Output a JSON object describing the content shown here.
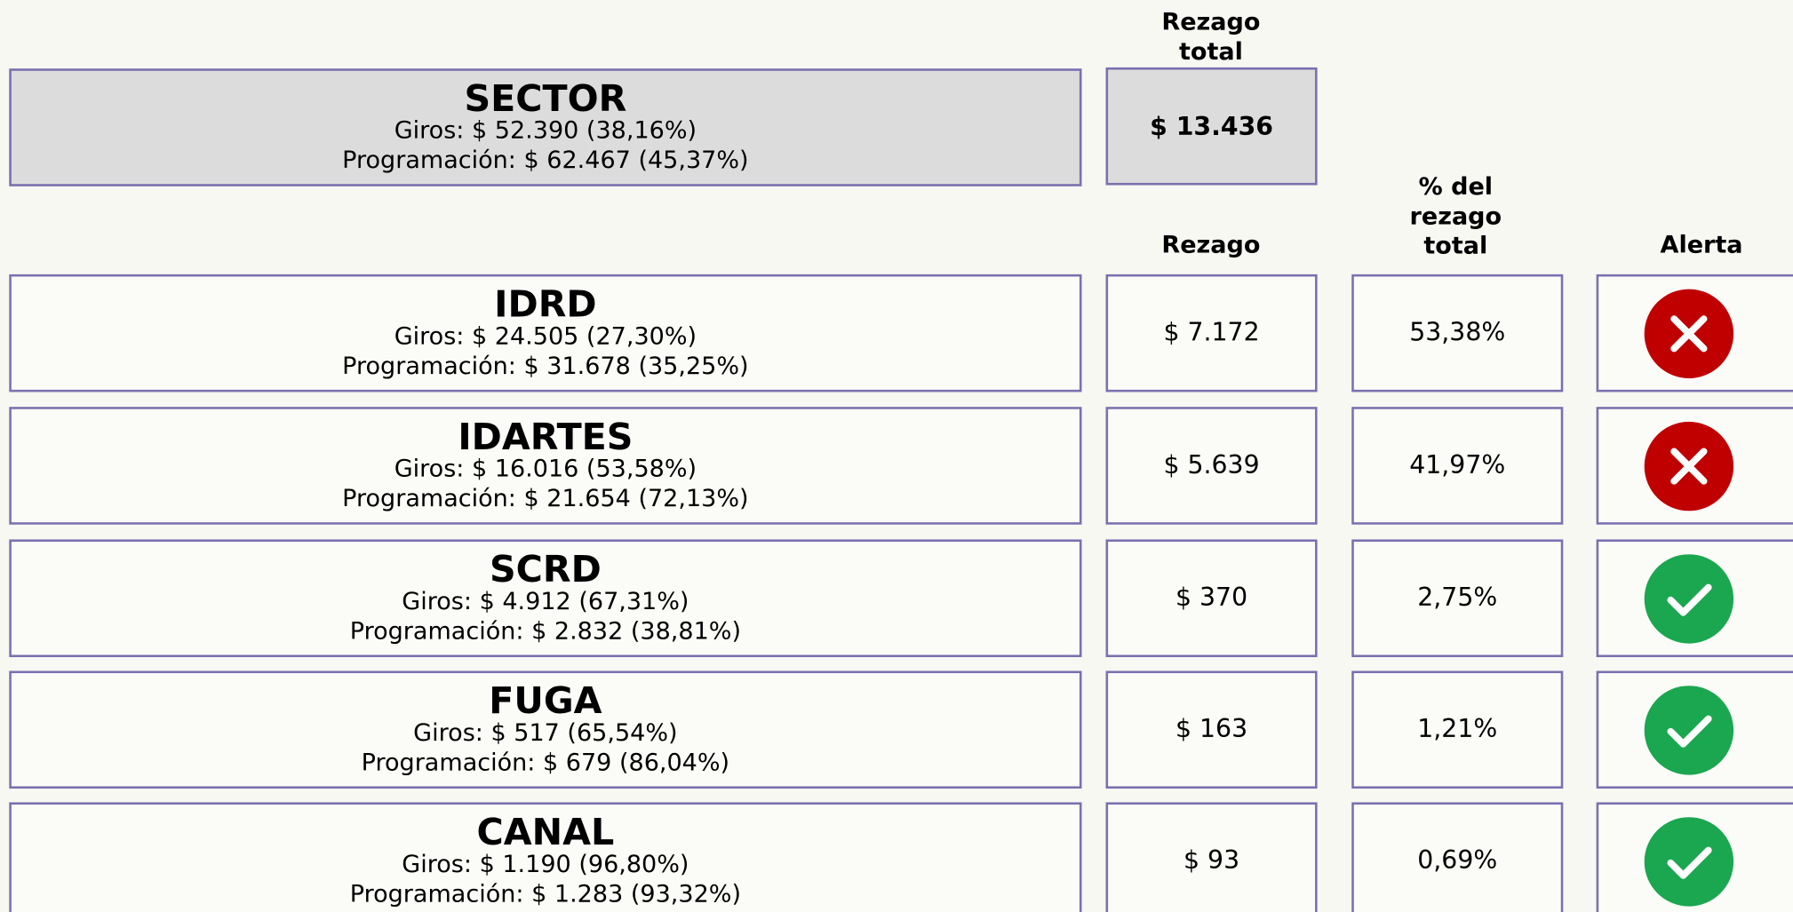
{
  "header": {
    "total_label": "Rezago total",
    "rezago_label": "Rezago",
    "pct_label": "% del rezago total",
    "alert_label": "Alerta"
  },
  "sector": {
    "name": "SECTOR",
    "giros": "Giros: $ 52.390 (38,16%)",
    "programacion": "Programación: $ 62.467 (45,37%)",
    "rezago_total": "$ 13.436"
  },
  "rows": [
    {
      "name": "IDRD",
      "giros": "Giros: $ 24.505 (27,30%)",
      "programacion": "Programación: $ 31.678 (35,25%)",
      "rezago": "$ 7.172",
      "pct": "53,38%",
      "icon": "cross",
      "icon_color": "#c00000"
    },
    {
      "name": "IDARTES",
      "giros": "Giros: $ 16.016 (53,58%)",
      "programacion": "Programación: $ 21.654 (72,13%)",
      "rezago": "$ 5.639",
      "pct": "41,97%",
      "icon": "cross",
      "icon_color": "#c00000"
    },
    {
      "name": "SCRD",
      "giros": "Giros: $ 4.912 (67,31%)",
      "programacion": "Programación: $ 2.832 (38,81%)",
      "rezago": "$ 370",
      "pct": "2,75%",
      "icon": "check",
      "icon_color": "#1aa74f"
    },
    {
      "name": "FUGA",
      "giros": "Giros: $ 517 (65,54%)",
      "programacion": "Programación: $ 679 (86,04%)",
      "rezago": "$ 163",
      "pct": "1,21%",
      "icon": "check",
      "icon_color": "#1aa74f"
    },
    {
      "name": "CANAL",
      "giros": "Giros: $ 1.190 (96,80%)",
      "programacion": "Programación: $ 1.283 (93,32%)",
      "rezago": "$ 93",
      "pct": "0,69%",
      "icon": "check",
      "icon_color": "#1aa74f"
    }
  ]
}
